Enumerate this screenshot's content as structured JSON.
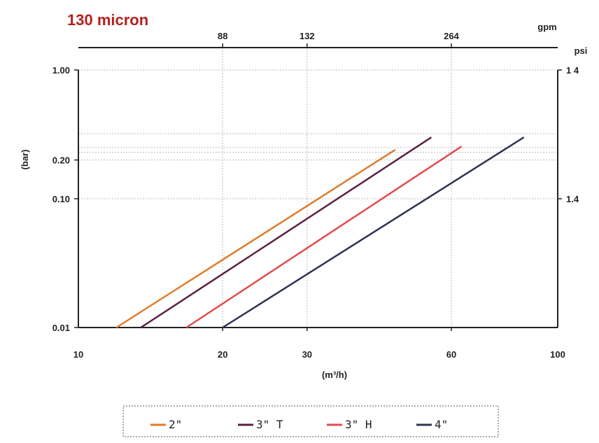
{
  "chart_data": {
    "type": "line",
    "title": "130 micron",
    "xlabel": "(m³/h)",
    "ylabel": "(bar)",
    "x_scale": "log",
    "y_scale": "log",
    "xlim": [
      10,
      100
    ],
    "ylim": [
      0.01,
      1.0
    ],
    "x_ticks": [
      "10",
      "20",
      "30",
      "60",
      "100"
    ],
    "x_tick_values": [
      10,
      20,
      30,
      60,
      100
    ],
    "y_ticks": [
      "0.01",
      "0.10",
      "0.20",
      "1.00"
    ],
    "y_tick_values": [
      0.01,
      0.1,
      0.2,
      1.0
    ],
    "top_axis": {
      "label": "gpm",
      "ticks": [
        "88",
        "132",
        "264"
      ],
      "at_x": [
        20,
        30,
        60
      ]
    },
    "right_axis": {
      "label": "psi",
      "ticks": [
        "1 4",
        "1.4"
      ],
      "at_y": [
        1.0,
        0.1
      ]
    },
    "extra_gridlines_y": [
      0.32,
      0.25,
      0.23
    ],
    "grid": true,
    "legend_position": "bottom",
    "series": [
      {
        "name": "2\"",
        "color": "#e07b2a",
        "x": [
          12.0,
          45.8
        ],
        "y": [
          0.01,
          0.24
        ]
      },
      {
        "name": "3\" T",
        "color": "#5a2142",
        "x": [
          13.5,
          54.5
        ],
        "y": [
          0.01,
          0.3
        ]
      },
      {
        "name": "3\" H",
        "color": "#e34b4b",
        "x": [
          16.8,
          63.0
        ],
        "y": [
          0.01,
          0.255
        ]
      },
      {
        "name": "4\"",
        "color": "#2e3452",
        "x": [
          20.0,
          85.0
        ],
        "y": [
          0.01,
          0.3
        ]
      }
    ]
  }
}
